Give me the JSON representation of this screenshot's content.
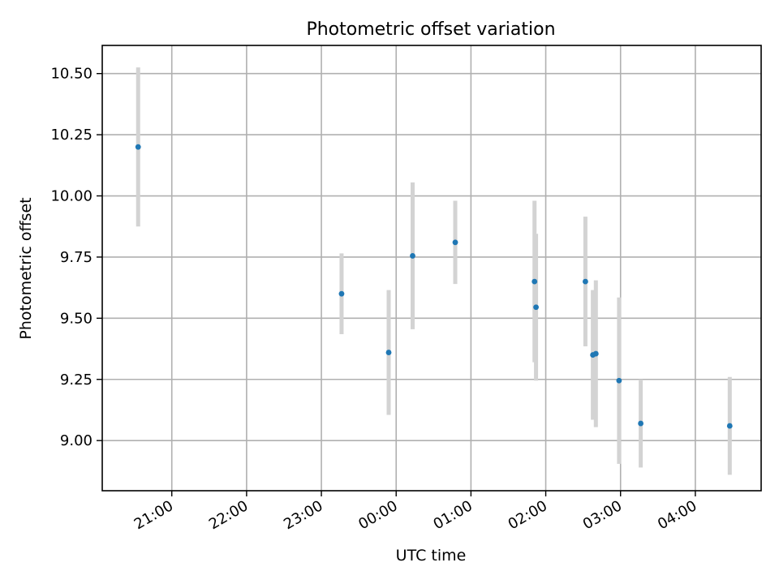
{
  "chart_data": {
    "type": "scatter",
    "title": "Photometric offset variation",
    "xlabel": "UTC time",
    "ylabel": "Photometric offset",
    "x_unit": "hours",
    "x_is_time": true,
    "xlim": [
      20.07,
      28.88
    ],
    "ylim": [
      8.795,
      10.615
    ],
    "yticks": [
      9.0,
      9.25,
      9.5,
      9.75,
      10.0,
      10.25,
      10.5
    ],
    "ytick_labels": [
      "9.00",
      "9.25",
      "9.50",
      "9.75",
      "10.00",
      "10.25",
      "10.50"
    ],
    "xticks": [
      21,
      22,
      23,
      24,
      25,
      26,
      27,
      28
    ],
    "xtick_labels": [
      "21:00",
      "22:00",
      "23:00",
      "00:00",
      "01:00",
      "02:00",
      "03:00",
      "04:00"
    ],
    "grid": true,
    "point_color": "#1f77b4",
    "errorbar_color": "#d3d3d3",
    "points": [
      {
        "x": 20.55,
        "y": 10.2,
        "yerr": 0.325
      },
      {
        "x": 23.27,
        "y": 9.6,
        "yerr": 0.165
      },
      {
        "x": 23.9,
        "y": 9.36,
        "yerr": 0.255
      },
      {
        "x": 24.22,
        "y": 9.755,
        "yerr": 0.3
      },
      {
        "x": 24.79,
        "y": 9.81,
        "yerr": 0.17
      },
      {
        "x": 25.85,
        "y": 9.65,
        "yerr": 0.33
      },
      {
        "x": 25.87,
        "y": 9.545,
        "yerr": 0.3
      },
      {
        "x": 26.53,
        "y": 9.65,
        "yerr": 0.265
      },
      {
        "x": 26.63,
        "y": 9.35,
        "yerr": 0.265
      },
      {
        "x": 26.67,
        "y": 9.355,
        "yerr": 0.3
      },
      {
        "x": 26.98,
        "y": 9.245,
        "yerr": 0.34
      },
      {
        "x": 27.27,
        "y": 9.07,
        "yerr": 0.18
      },
      {
        "x": 28.46,
        "y": 9.06,
        "yerr": 0.2
      }
    ]
  }
}
